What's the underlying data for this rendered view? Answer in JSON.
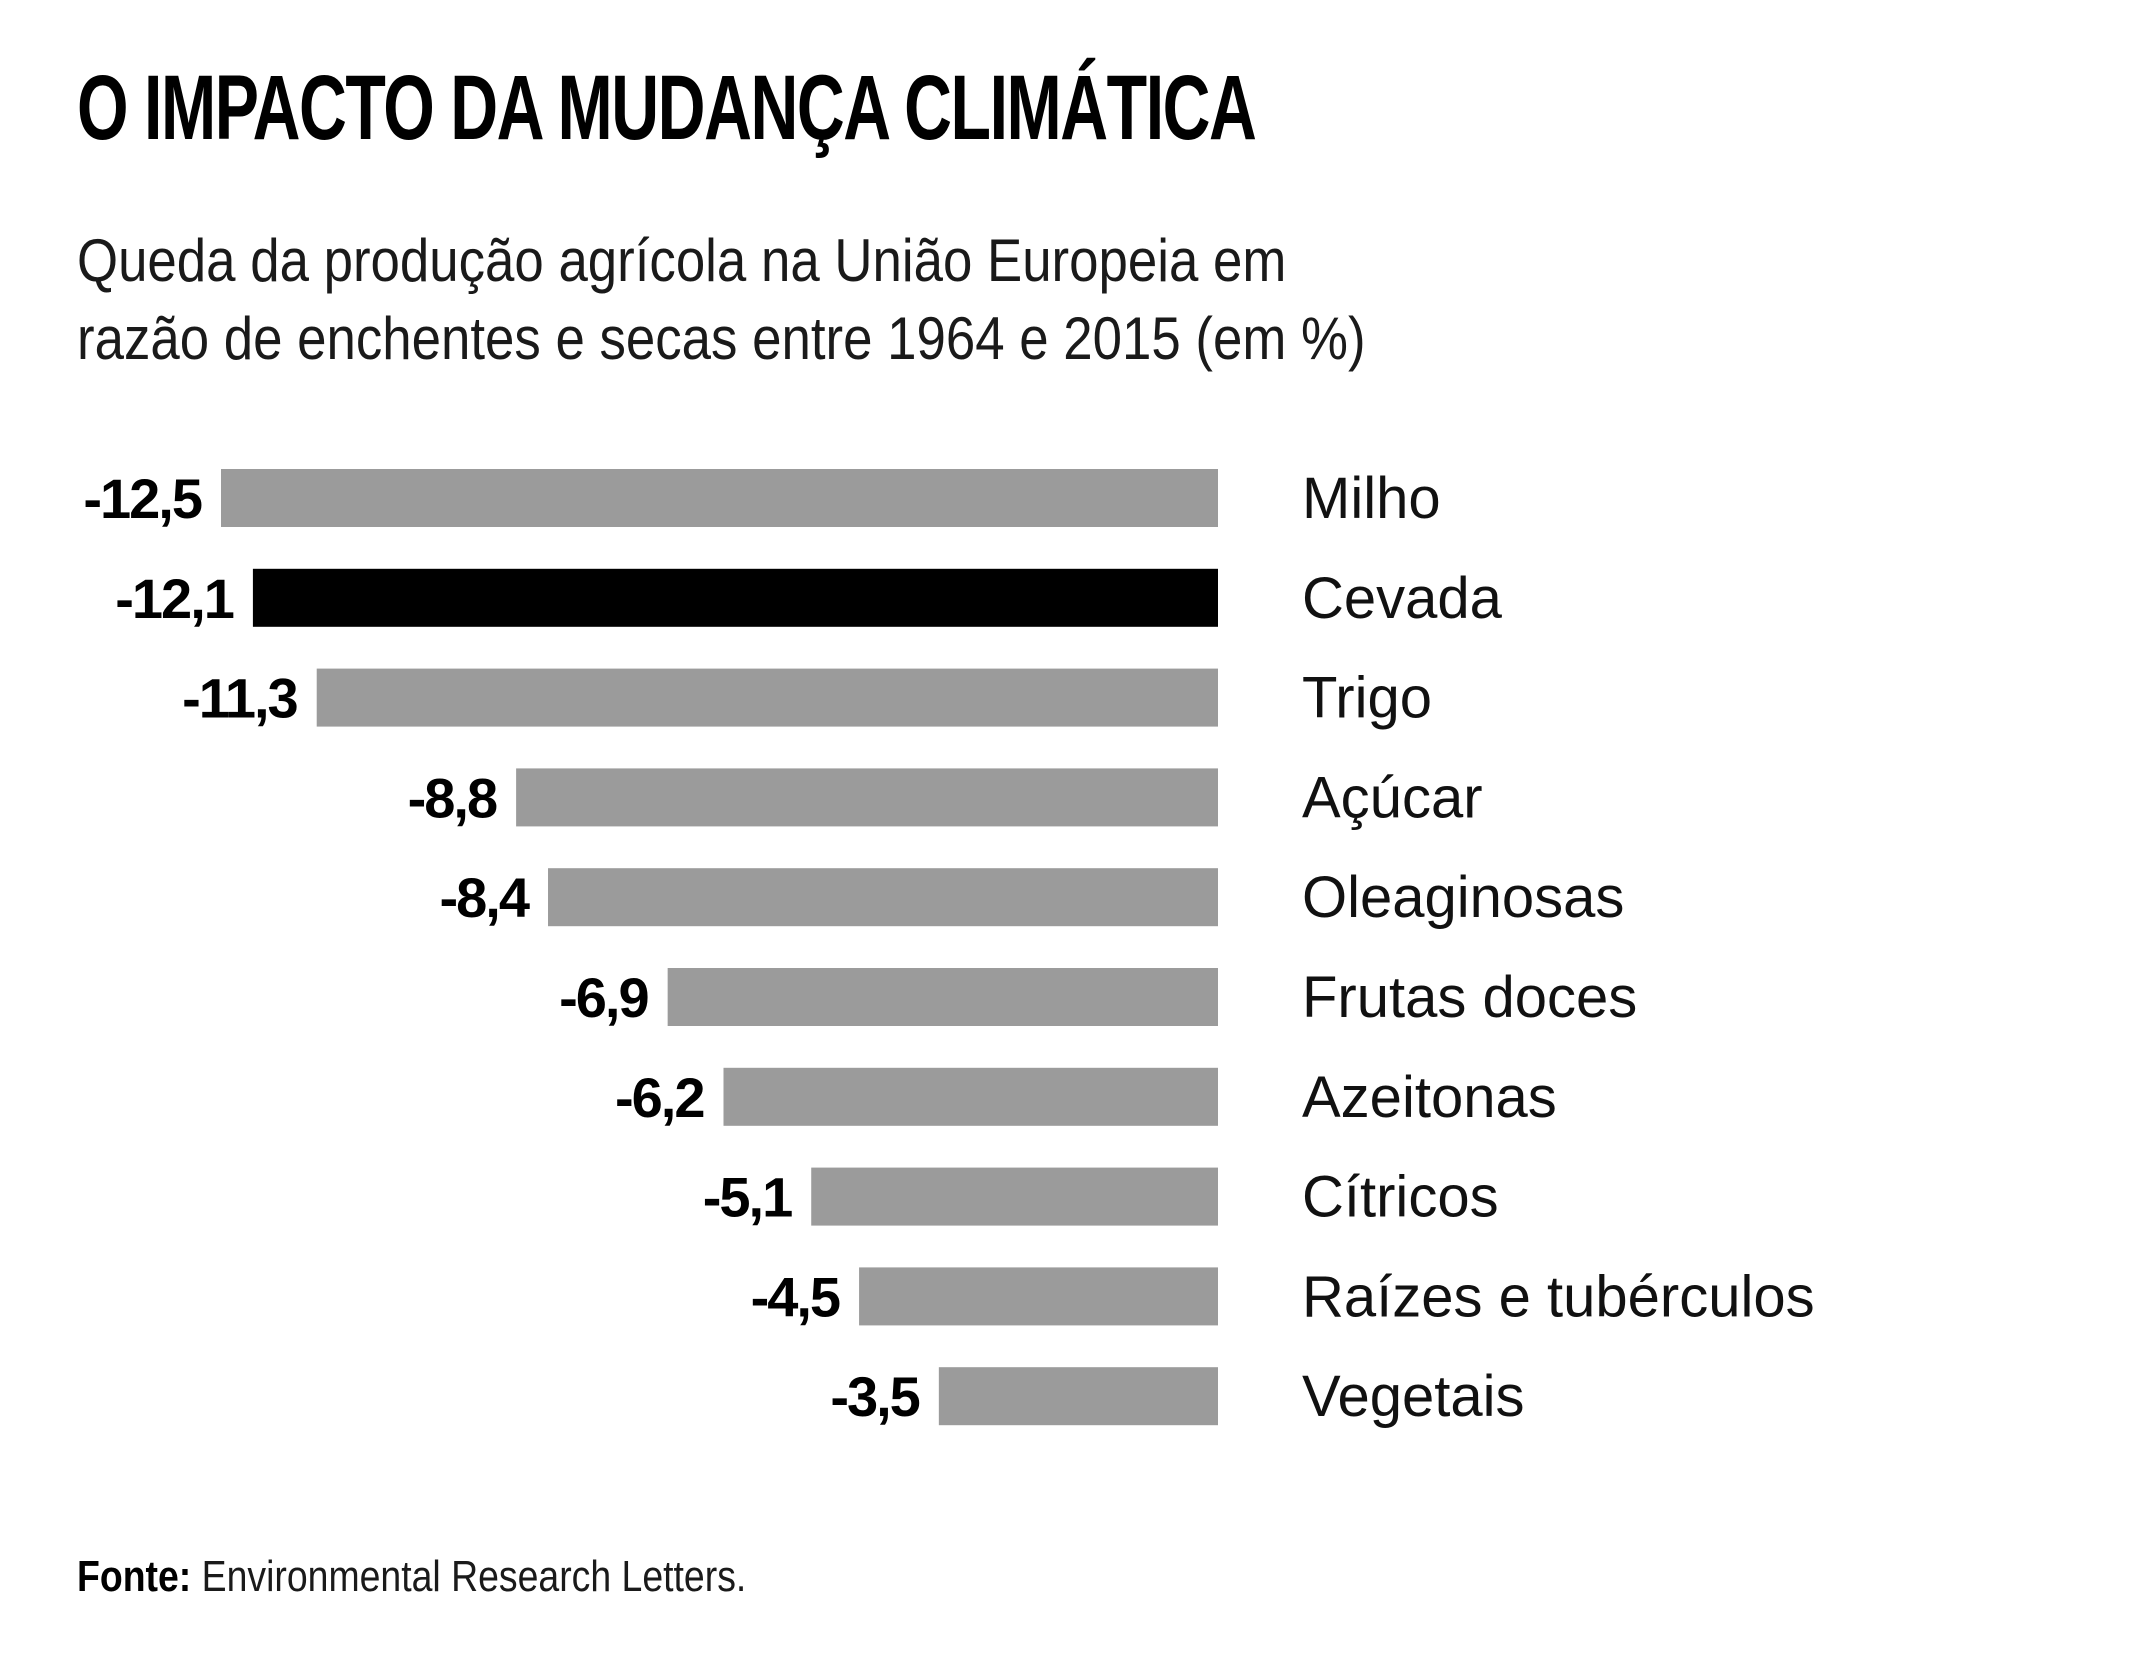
{
  "title": "O IMPACTO DA MUDANÇA CLIMÁTICA",
  "subtitle_line1": "Queda da produção agrícola na União Europeia em",
  "subtitle_line2": "razão de enchentes e secas entre 1964 e 2015 (em %)",
  "footer": {
    "source_label": "Fonte:",
    "source_text": "Environmental Research Letters."
  },
  "colors": {
    "bar_default": "#9b9b9b",
    "bar_highlight": "#000000",
    "text": "#111111"
  },
  "chart_data": {
    "type": "bar",
    "orientation": "horizontal",
    "title": "O IMPACTO DA MUDANÇA CLIMÁTICA",
    "subtitle": "Queda da produção agrícola na União Europeia em razão de enchentes e secas entre 1964 e 2015 (em %)",
    "categories": [
      "Milho",
      "Cevada",
      "Trigo",
      "Açúcar",
      "Oleaginosas",
      "Frutas doces",
      "Azeitonas",
      "Cítricos",
      "Raízes e tubérculos",
      "Vegetais"
    ],
    "values": [
      -12.5,
      -12.1,
      -11.3,
      -8.8,
      -8.4,
      -6.9,
      -6.2,
      -5.1,
      -4.5,
      -3.5
    ],
    "value_labels": [
      "-12,5",
      "-12,1",
      "-11,3",
      "-8,8",
      "-8,4",
      "-6,9",
      "-6,2",
      "-5,1",
      "-4,5",
      "-3,5"
    ],
    "highlight": "Cevada",
    "xlim": [
      -12.5,
      0
    ],
    "grid": false,
    "legend": "none"
  }
}
